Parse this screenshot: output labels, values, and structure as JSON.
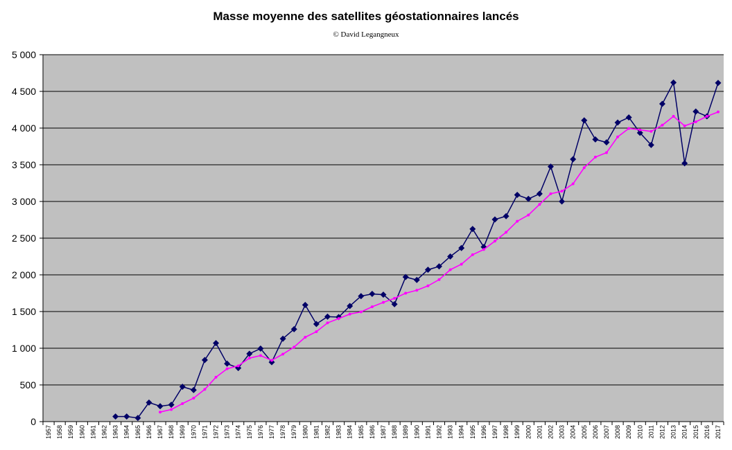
{
  "chart_data": {
    "type": "line",
    "title": "Masse moyenne des satellites géostationnaires lancés",
    "subtitle": "© David Legangneux",
    "xlabel": "",
    "ylabel": "",
    "ylim": [
      0,
      5000
    ],
    "yticks": [
      0,
      500,
      1000,
      1500,
      2000,
      2500,
      3000,
      3500,
      4000,
      4500,
      5000
    ],
    "ytick_labels": [
      "0",
      "500",
      "1 000",
      "1 500",
      "2 000",
      "2 500",
      "3 000",
      "3 500",
      "4 000",
      "4 500",
      "5 000"
    ],
    "categories": [
      "1957",
      "1958",
      "1959",
      "1960",
      "1961",
      "1962",
      "1963",
      "1964",
      "1965",
      "1966",
      "1967",
      "1968",
      "1969",
      "1970",
      "1971",
      "1972",
      "1973",
      "1974",
      "1975",
      "1976",
      "1977",
      "1978",
      "1979",
      "1980",
      "1981",
      "1982",
      "1983",
      "1984",
      "1985",
      "1986",
      "1987",
      "1988",
      "1989",
      "1990",
      "1991",
      "1992",
      "1993",
      "1994",
      "1995",
      "1996",
      "1997",
      "1998",
      "1999",
      "2000",
      "2001",
      "2002",
      "2003",
      "2004",
      "2005",
      "2006",
      "2007",
      "2008",
      "2009",
      "2010",
      "2011",
      "2012",
      "2013",
      "2014",
      "2015",
      "2016",
      "2017"
    ],
    "grid": true,
    "legend": "none",
    "colors": {
      "plot_bg": "#c0c0c0",
      "series_main": "#000066",
      "series_avg": "#ff00ff",
      "grid": "#000000"
    },
    "series": [
      {
        "marker": "diamond",
        "values": [
          null,
          null,
          null,
          null,
          null,
          null,
          70,
          70,
          50,
          260,
          210,
          230,
          475,
          430,
          840,
          1070,
          790,
          730,
          925,
          995,
          810,
          1130,
          1260,
          1590,
          1330,
          1430,
          1425,
          1575,
          1710,
          1740,
          1730,
          1600,
          1970,
          1930,
          2070,
          2115,
          2250,
          2365,
          2625,
          2380,
          2755,
          2800,
          3090,
          3035,
          3105,
          3475,
          3000,
          3575,
          4105,
          3845,
          3805,
          4075,
          4145,
          3935,
          3770,
          4330,
          4620,
          3520,
          4225,
          4160,
          4615
        ]
      },
      {
        "marker": "dot",
        "values": [
          null,
          null,
          null,
          null,
          null,
          null,
          null,
          null,
          null,
          null,
          130,
          165,
          245,
          320,
          440,
          605,
          720,
          760,
          865,
          900,
          835,
          920,
          1015,
          1150,
          1225,
          1345,
          1405,
          1465,
          1495,
          1565,
          1625,
          1680,
          1750,
          1790,
          1850,
          1935,
          2070,
          2145,
          2275,
          2345,
          2460,
          2580,
          2730,
          2815,
          2960,
          3105,
          3140,
          3240,
          3460,
          3605,
          3665,
          3880,
          3995,
          3975,
          3955,
          4040,
          4160,
          4030,
          4085,
          4160,
          4220
        ]
      }
    ]
  }
}
